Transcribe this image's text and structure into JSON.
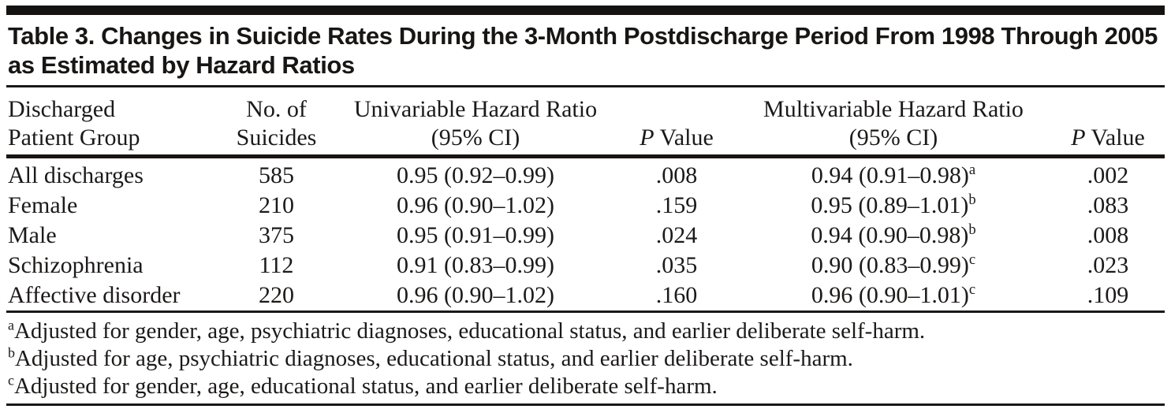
{
  "title": {
    "line1": "Table 3. Changes in Suicide Rates During the 3-Month Postdischarge Period From 1998",
    "line2": "Through 2005 as Estimated by Hazard Ratios"
  },
  "table": {
    "headers": {
      "group_line1": "Discharged",
      "group_line2": "Patient Group",
      "n_line1": "No. of",
      "n_line2": "Suicides",
      "uni_line1": "Univariable Hazard Ratio",
      "uni_line2": "(95% CI)",
      "p_italic": "P",
      "p_rest": " Value",
      "multi_line1": "Multivariable Hazard Ratio",
      "multi_line2": "(95% CI)"
    },
    "rows": [
      {
        "group": "All discharges",
        "n": "585",
        "uni_hr": "0.95 (0.92–0.99)",
        "uni_p": ".008",
        "multi_hr": "0.94 (0.91–0.98)",
        "multi_sup": "a",
        "multi_p": ".002"
      },
      {
        "group": "Female",
        "n": "210",
        "uni_hr": "0.96 (0.90–1.02)",
        "uni_p": ".159",
        "multi_hr": "0.95 (0.89–1.01)",
        "multi_sup": "b",
        "multi_p": ".083"
      },
      {
        "group": "Male",
        "n": "375",
        "uni_hr": "0.95 (0.91–0.99)",
        "uni_p": ".024",
        "multi_hr": "0.94 (0.90–0.98)",
        "multi_sup": "b",
        "multi_p": ".008"
      },
      {
        "group": "Schizophrenia",
        "n": "112",
        "uni_hr": "0.91 (0.83–0.99)",
        "uni_p": ".035",
        "multi_hr": "0.90 (0.83–0.99)",
        "multi_sup": "c",
        "multi_p": ".023"
      },
      {
        "group": "Affective disorder",
        "n": "220",
        "uni_hr": "0.96 (0.90–1.02)",
        "uni_p": ".160",
        "multi_hr": "0.96 (0.90–1.01)",
        "multi_sup": "c",
        "multi_p": ".109"
      }
    ],
    "footnotes": [
      {
        "marker": "a",
        "text": "Adjusted for gender, age, psychiatric diagnoses, educational status, and earlier deliberate self-harm."
      },
      {
        "marker": "b",
        "text": "Adjusted for age, psychiatric diagnoses, educational status, and earlier deliberate self-harm."
      },
      {
        "marker": "c",
        "text": "Adjusted for gender, age, educational status, and earlier deliberate self-harm."
      }
    ]
  },
  "colors": {
    "text": "#1c1a19",
    "rule": "#1a1817",
    "top_bar": "#151311",
    "background": "#ffffff"
  }
}
